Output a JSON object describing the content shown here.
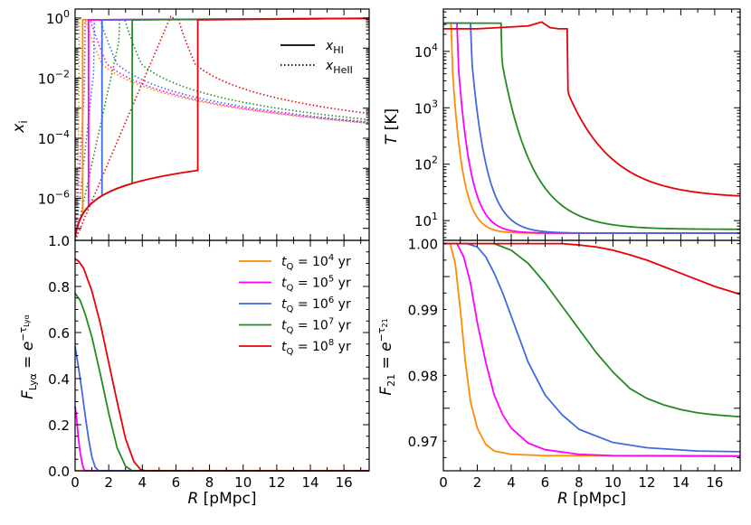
{
  "chart_data": [
    {
      "type": "line",
      "panel": "top-left",
      "ylabel": "x_i",
      "ylabel_base": "x",
      "ylabel_sub": "i",
      "xlim": [
        0,
        17.5
      ],
      "ylim_log10": [
        -7.4,
        0.3
      ],
      "yscale": "log",
      "yticks": [
        {
          "exp": "0",
          "mant": "10",
          "v": 0
        },
        {
          "exp": "−2",
          "mant": "10",
          "v": -2
        },
        {
          "exp": "−4",
          "mant": "10",
          "v": -4
        },
        {
          "exp": "−6",
          "mant": "10",
          "v": -6
        }
      ],
      "ytick_first_label": "1",
      "legend": {
        "position": "top-right",
        "entries": [
          {
            "style": "solid",
            "base": "x",
            "sub": "HI"
          },
          {
            "style": "dotted",
            "base": "x",
            "sub": "HeII"
          }
        ]
      },
      "series_note": "solid = x_HI, dotted = x_HeII; one pair per t_Q",
      "series": [
        {
          "name": "t_Q = 10^4 yr",
          "color": "#ff8c00",
          "front_hi": 0.45,
          "front_he": 0.25
        },
        {
          "name": "t_Q = 10^5 yr",
          "color": "#ff00ff",
          "front_hi": 0.8,
          "front_he": 0.55
        },
        {
          "name": "t_Q = 10^6 yr",
          "color": "#4169e1",
          "front_hi": 1.6,
          "front_he": 1.15
        },
        {
          "name": "t_Q = 10^7 yr",
          "color": "#228b22",
          "front_hi": 3.4,
          "front_he": 2.6
        },
        {
          "name": "t_Q = 10^8 yr",
          "color": "#e8000b",
          "front_hi": 7.3,
          "front_he": 5.8
        }
      ]
    },
    {
      "type": "line",
      "panel": "top-right",
      "ylabel": "T [K]",
      "ylabel_base": "T",
      "ylabel_unit": " [K]",
      "xlim": [
        0,
        17.5
      ],
      "ylim_log10": [
        0.65,
        4.75
      ],
      "yscale": "log",
      "yticks": [
        {
          "exp": "4",
          "mant": "10",
          "v": 4
        },
        {
          "exp": "3",
          "mant": "10",
          "v": 3
        },
        {
          "exp": "2",
          "mant": "10",
          "v": 2
        },
        {
          "exp": "1",
          "mant": "10",
          "v": 1
        }
      ],
      "series": [
        {
          "name": "t_Q = 10^4 yr",
          "color": "#ff8c00",
          "front": 0.45,
          "t_final": 6
        },
        {
          "name": "t_Q = 10^5 yr",
          "color": "#ff00ff",
          "front": 0.8,
          "t_final": 6
        },
        {
          "name": "t_Q = 10^6 yr",
          "color": "#4169e1",
          "front": 1.6,
          "t_final": 6
        },
        {
          "name": "t_Q = 10^7 yr",
          "color": "#228b22",
          "front": 3.4,
          "t_final": 7
        },
        {
          "name": "t_Q = 10^8 yr",
          "color": "#e8000b",
          "front": 7.3,
          "t_final": 25
        }
      ]
    },
    {
      "type": "line",
      "panel": "bottom-left",
      "xlabel": "R [pMpc]",
      "ylabel": "F_Lyα = e^−τ_Lyα",
      "xlim": [
        0,
        17.5
      ],
      "ylim": [
        0,
        1.0
      ],
      "xticks": [
        0,
        2,
        4,
        6,
        8,
        10,
        12,
        14,
        16
      ],
      "yticks": [
        "0.0",
        "0.2",
        "0.4",
        "0.6",
        "0.8",
        "1.0"
      ],
      "legend": {
        "position": "top-right",
        "entries": [
          {
            "color": "#ff8c00",
            "exp": "4"
          },
          {
            "color": "#ff00ff",
            "exp": "5"
          },
          {
            "color": "#4169e1",
            "exp": "6"
          },
          {
            "color": "#228b22",
            "exp": "7"
          },
          {
            "color": "#e8000b",
            "exp": "8"
          }
        ],
        "label_prefix": "t",
        "label_sub": "Q",
        "label_eq": " = 10",
        "label_unit": " yr"
      },
      "series": [
        {
          "name": "t_Q = 10^4 yr",
          "color": "#ff8c00",
          "x": [
            0,
            0.05,
            0.1,
            0.2
          ],
          "y": [
            0.0,
            0.0,
            0.0,
            0.0
          ]
        },
        {
          "name": "t_Q = 10^5 yr",
          "color": "#ff00ff",
          "x": [
            0,
            0.1,
            0.2,
            0.3,
            0.4,
            0.5,
            0.6
          ],
          "y": [
            0.28,
            0.22,
            0.14,
            0.08,
            0.04,
            0.01,
            0.0
          ]
        },
        {
          "name": "t_Q = 10^6 yr",
          "color": "#4169e1",
          "x": [
            0,
            0.2,
            0.4,
            0.6,
            0.8,
            1.0,
            1.2,
            1.4
          ],
          "y": [
            0.54,
            0.45,
            0.35,
            0.24,
            0.14,
            0.06,
            0.015,
            0.0
          ]
        },
        {
          "name": "t_Q = 10^7 yr",
          "color": "#228b22",
          "x": [
            0,
            0.3,
            0.6,
            1.0,
            1.5,
            2.0,
            2.5,
            3.0,
            3.4
          ],
          "y": [
            0.77,
            0.74,
            0.68,
            0.58,
            0.42,
            0.25,
            0.1,
            0.02,
            0.0
          ]
        },
        {
          "name": "t_Q = 10^8 yr",
          "color": "#e8000b",
          "x": [
            0,
            0.2,
            0.5,
            1.0,
            1.5,
            2.0,
            2.5,
            3.0,
            3.5,
            3.9,
            4.2
          ],
          "y": [
            0.92,
            0.91,
            0.88,
            0.78,
            0.64,
            0.47,
            0.3,
            0.14,
            0.04,
            0.005,
            0.0
          ]
        }
      ]
    },
    {
      "type": "line",
      "panel": "bottom-right",
      "xlabel": "R [pMpc]",
      "ylabel": "F_21 = e^−τ_21",
      "xlim": [
        0,
        17.5
      ],
      "ylim": [
        0.9655,
        1.0005
      ],
      "xticks": [
        0,
        2,
        4,
        6,
        8,
        10,
        12,
        14,
        16
      ],
      "yticks": [
        "0.97",
        "0.98",
        "0.99",
        "1.00"
      ],
      "series": [
        {
          "name": "t_Q = 10^4 yr",
          "color": "#ff8c00",
          "x": [
            0,
            0.4,
            0.7,
            1.0,
            1.3,
            1.6,
            2.0,
            2.5,
            3.0,
            4.0,
            6.0,
            10.0,
            17.5
          ],
          "y": [
            1.0,
            1.0,
            0.997,
            0.99,
            0.982,
            0.976,
            0.972,
            0.9695,
            0.9685,
            0.968,
            0.9678,
            0.9678,
            0.9678
          ]
        },
        {
          "name": "t_Q = 10^5 yr",
          "color": "#ff00ff",
          "x": [
            0,
            0.8,
            1.2,
            1.6,
            2.0,
            2.5,
            3.0,
            3.5,
            4.0,
            5.0,
            6.0,
            8.0,
            10.0,
            17.5
          ],
          "y": [
            1.0,
            1.0,
            0.998,
            0.994,
            0.988,
            0.982,
            0.977,
            0.974,
            0.972,
            0.9697,
            0.9687,
            0.968,
            0.9678,
            0.9677
          ]
        },
        {
          "name": "t_Q = 10^6 yr",
          "color": "#4169e1",
          "x": [
            0,
            1.4,
            2.0,
            2.5,
            3.0,
            3.5,
            4.0,
            4.5,
            5.0,
            6.0,
            7.0,
            8.0,
            10.0,
            12.0,
            15.0,
            17.5
          ],
          "y": [
            1.0,
            1.0,
            0.9995,
            0.998,
            0.9955,
            0.9925,
            0.989,
            0.9855,
            0.982,
            0.977,
            0.974,
            0.9718,
            0.9698,
            0.969,
            0.9685,
            0.9684
          ]
        },
        {
          "name": "t_Q = 10^7 yr",
          "color": "#228b22",
          "x": [
            0,
            3.0,
            4.0,
            5.0,
            6.0,
            7.0,
            8.0,
            9.0,
            10.0,
            11.0,
            12.0,
            13.0,
            14.0,
            15.0,
            16.0,
            17.5
          ],
          "y": [
            1.0,
            1.0,
            0.999,
            0.997,
            0.994,
            0.9905,
            0.987,
            0.9835,
            0.9805,
            0.978,
            0.9765,
            0.9755,
            0.9748,
            0.9743,
            0.974,
            0.9737
          ]
        },
        {
          "name": "t_Q = 10^8 yr",
          "color": "#e8000b",
          "x": [
            0,
            7.0,
            8.0,
            9.0,
            10.0,
            11.0,
            12.0,
            13.0,
            14.0,
            15.0,
            16.0,
            17.5
          ],
          "y": [
            1.0,
            1.0,
            0.9998,
            0.9995,
            0.999,
            0.9983,
            0.9975,
            0.9965,
            0.9955,
            0.9945,
            0.9935,
            0.9923
          ]
        }
      ]
    }
  ]
}
